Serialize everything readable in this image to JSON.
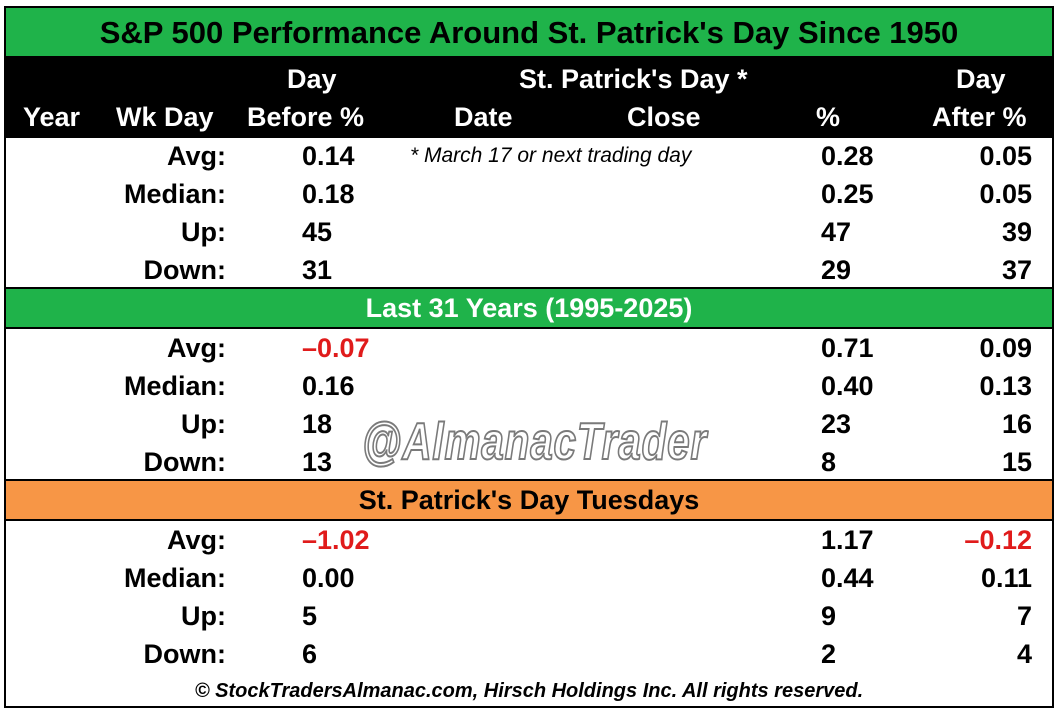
{
  "title": "S&P 500 Performance Around St. Patrick's Day Since 1950",
  "headers": {
    "year": "Year",
    "wkday": "Wk Day",
    "before_top": "Day",
    "before_bottom": "Before %",
    "stp_top": "St. Patrick's Day *",
    "date": "Date",
    "close": "Close",
    "pct": "%",
    "after_top": "Day",
    "after_bottom": "After %"
  },
  "note": "* March 17 or next trading day",
  "sections": [
    {
      "title": "",
      "rows": [
        {
          "label": "Avg:",
          "before": "0.14",
          "pct": "0.28",
          "after": "0.05"
        },
        {
          "label": "Median:",
          "before": "0.18",
          "pct": "0.25",
          "after": "0.05"
        },
        {
          "label": "Up:",
          "before": "45",
          "pct": "47",
          "after": "39"
        },
        {
          "label": "Down:",
          "before": "31",
          "pct": "29",
          "after": "37"
        }
      ]
    },
    {
      "title": "Last 31 Years (1995-2025)",
      "rows": [
        {
          "label": "Avg:",
          "before": "–0.07",
          "pct": "0.71",
          "after": "0.09"
        },
        {
          "label": "Median:",
          "before": "0.16",
          "pct": "0.40",
          "after": "0.13"
        },
        {
          "label": "Up:",
          "before": "18",
          "pct": "23",
          "after": "16"
        },
        {
          "label": "Down:",
          "before": "13",
          "pct": "8",
          "after": "15"
        }
      ]
    },
    {
      "title": "St. Patrick's Day Tuesdays",
      "rows": [
        {
          "label": "Avg:",
          "before": "–1.02",
          "pct": "1.17",
          "after": "–0.12"
        },
        {
          "label": "Median:",
          "before": "0.00",
          "pct": "0.44",
          "after": "0.11"
        },
        {
          "label": "Up:",
          "before": "5",
          "pct": "9",
          "after": "7"
        },
        {
          "label": "Down:",
          "before": "6",
          "pct": "2",
          "after": "4"
        }
      ]
    }
  ],
  "watermark": "@AlmanacTrader",
  "footer": "© StockTradersAlmanac.com, Hirsch Holdings Inc. All rights reserved.",
  "colors": {
    "green": "#1fb34a",
    "orange": "#f79646",
    "negative": "#e01b1b",
    "header_bg": "#000000"
  }
}
